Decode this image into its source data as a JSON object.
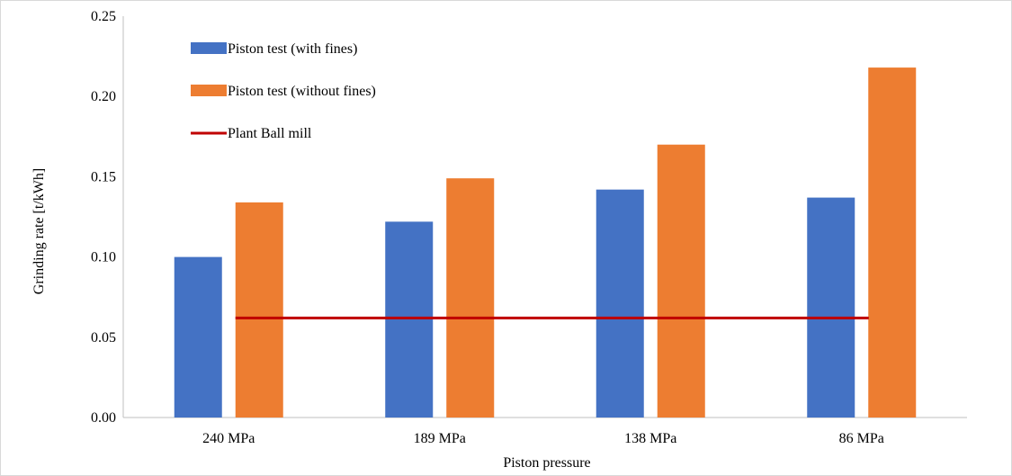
{
  "chart_data": {
    "type": "bar",
    "categories": [
      "240 MPa",
      "189 MPa",
      "138 MPa",
      "86 MPa"
    ],
    "series": [
      {
        "name": "Piston test (with fines)",
        "type": "bar",
        "values": [
          0.1,
          0.122,
          0.142,
          0.137
        ],
        "color": "#4472c4"
      },
      {
        "name": "Piston test (without fines)",
        "type": "bar",
        "values": [
          0.134,
          0.149,
          0.17,
          0.218
        ],
        "color": "#ed7d31"
      },
      {
        "name": "Plant Ball mill",
        "type": "line",
        "values": [
          0.062,
          0.062,
          0.062,
          0.062
        ],
        "color": "#c00000"
      }
    ],
    "xlabel": "Piston pressure",
    "ylabel": "Grinding rate [t/kWh]",
    "ylim": [
      0,
      0.25
    ],
    "yticks": [
      "0.00",
      "0.05",
      "0.10",
      "0.15",
      "0.20",
      "0.25"
    ],
    "grid": false,
    "legend_position": "top-left"
  }
}
